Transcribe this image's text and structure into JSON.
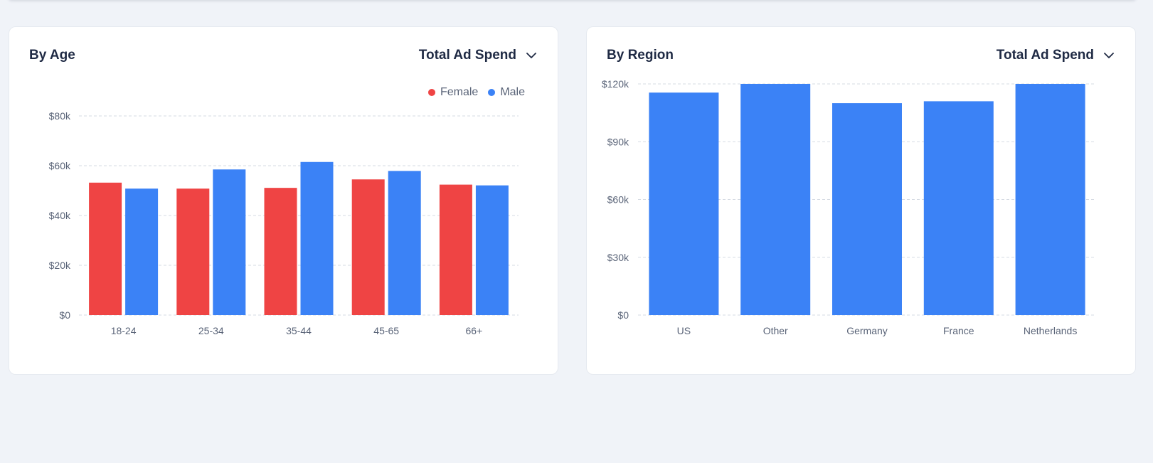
{
  "colors": {
    "female": "#ef4444",
    "male": "#3b82f6",
    "region_bar": "#3b82f6",
    "grid": "#d6dbe3"
  },
  "age_card": {
    "title": "By Age",
    "metric": "Total Ad Spend"
  },
  "region_card": {
    "title": "By Region",
    "metric": "Total Ad Spend"
  },
  "chart_data": [
    {
      "type": "bar",
      "title": "By Age",
      "ylabel": "Total Ad Spend",
      "categories": [
        "18-24",
        "25-34",
        "35-44",
        "45-65",
        "66+"
      ],
      "series": [
        {
          "name": "Female",
          "values": [
            53200,
            50800,
            51100,
            54500,
            52400
          ]
        },
        {
          "name": "Male",
          "values": [
            50800,
            58500,
            61500,
            57900,
            52100
          ]
        }
      ],
      "ylim": [
        0,
        80000
      ],
      "yticks": [
        0,
        20000,
        40000,
        60000,
        80000
      ],
      "ytick_labels": [
        "$0",
        "$20k",
        "$40k",
        "$60k",
        "$80k"
      ],
      "legend": "top-right",
      "grid": true
    },
    {
      "type": "bar",
      "title": "By Region",
      "ylabel": "Total Ad Spend",
      "categories": [
        "US",
        "Other",
        "Germany",
        "France",
        "Netherlands"
      ],
      "values": [
        115500,
        120000,
        110000,
        111000,
        120000
      ],
      "ylim": [
        0,
        120000
      ],
      "yticks": [
        0,
        30000,
        60000,
        90000,
        120000
      ],
      "ytick_labels": [
        "$0",
        "$30k",
        "$60k",
        "$90k",
        "$120k"
      ],
      "grid": true
    }
  ]
}
